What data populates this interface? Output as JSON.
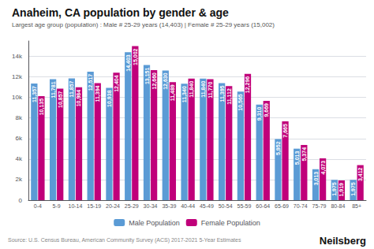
{
  "chart_data": {
    "type": "bar",
    "title": "Anaheim, CA population by gender & age",
    "subtitle": "Largest age group (population) : Male # 25-29 years (14,403) | Female # 25-29 years (15,002)",
    "annotations": [
      "Source: U.S. Census Bureau, American Community Survey (ACS) 2017-2021 5-Year Estimates",
      "Neilsberg"
    ],
    "categories": [
      "0-4",
      "5-9",
      "10-14",
      "15-19",
      "20-24",
      "25-29",
      "30-34",
      "35-39",
      "40-44",
      "45-49",
      "50-54",
      "55-59",
      "60-64",
      "65-69",
      "70-74",
      "75-79",
      "80-84",
      "85+"
    ],
    "series": [
      {
        "name": "Male Population",
        "color": "#5b9bd5",
        "values": [
          11357,
          11781,
          11857,
          12517,
          10938,
          14403,
          13151,
          12630,
          11340,
          11840,
          11395,
          10565,
          9310,
          5952,
          5013,
          3013,
          1975,
          1975
        ],
        "value_labels": [
          "11,357",
          "11,781",
          "11,857",
          "12,517",
          "10,938",
          "14,403",
          "13,151",
          "12,630",
          "11,340",
          "11,840",
          "11,395",
          "10,565",
          "9,310",
          "5,952",
          "5,013",
          "3,013",
          "1,975",
          "1,975"
        ]
      },
      {
        "name": "Female Population",
        "color": "#c0007a",
        "values": [
          10135,
          10857,
          10984,
          11394,
          12404,
          15002,
          12660,
          11489,
          11840,
          11770,
          11112,
          12296,
          9669,
          7665,
          5374,
          4073,
          1919,
          3412
        ],
        "value_labels": [
          "10,135",
          "10,857",
          "10,984",
          "11,394",
          "12,404",
          "15,002",
          "12,660",
          "11,489",
          "11,840",
          "11,770",
          "11,112",
          "12,296",
          "9,669",
          "7,665",
          "5,374",
          "4,073",
          "1,919",
          "3,412"
        ]
      }
    ],
    "ylim": [
      0,
      15500
    ],
    "yticks": [
      0,
      {
        "value": 2000,
        "label": "2k"
      },
      {
        "value": 4000,
        "label": "4k"
      },
      {
        "value": 6000,
        "label": "6k"
      },
      {
        "value": 8000,
        "label": "8k"
      },
      {
        "value": 10000,
        "label": "10k"
      },
      {
        "value": 12000,
        "label": "12k"
      },
      {
        "value": 14000,
        "label": "14k"
      }
    ],
    "grid": true,
    "legend": "bottom",
    "data_labels": true
  }
}
